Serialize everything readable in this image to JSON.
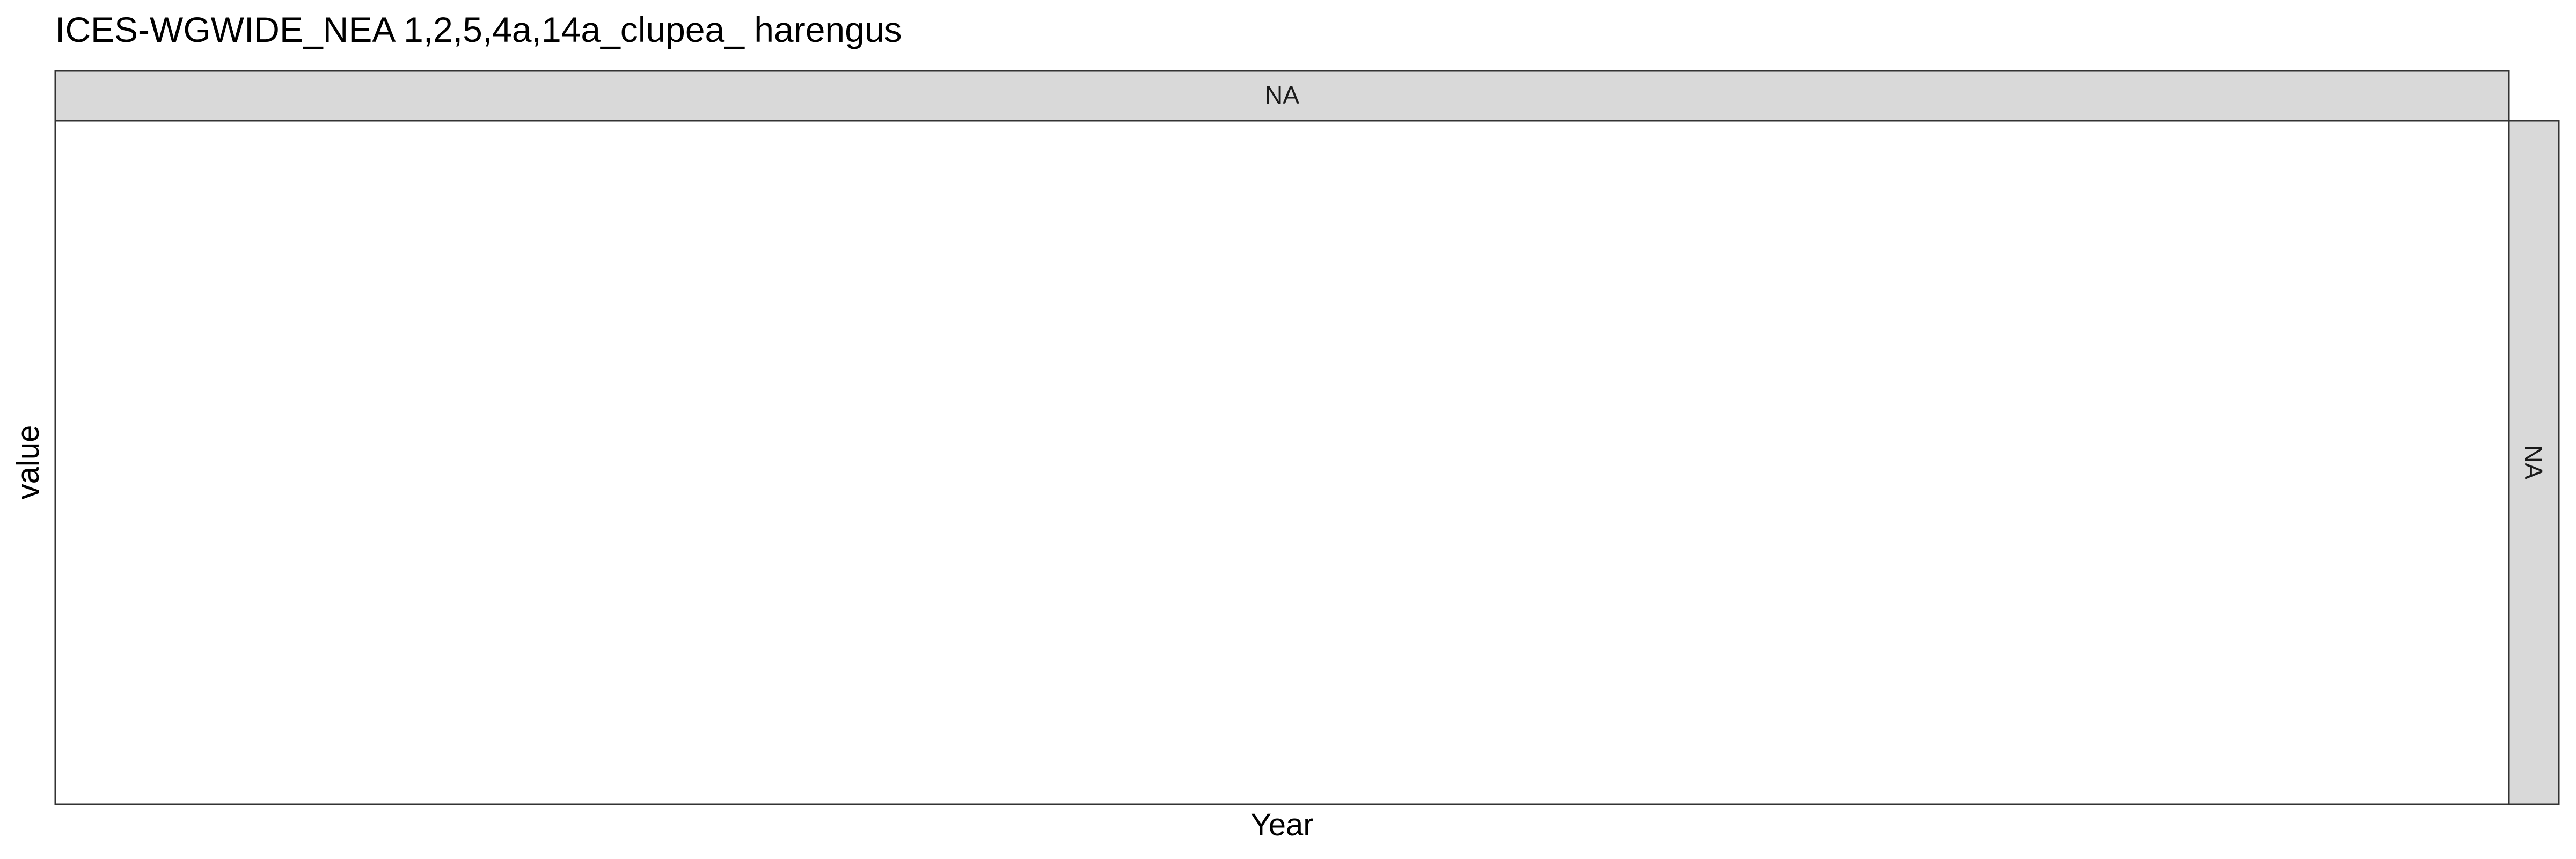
{
  "chart_data": {
    "type": "line",
    "title": "ICES-WGWIDE_NEA 1,2,5,4a,14a_clupea_ harengus",
    "xlabel": "Year",
    "ylabel": "value",
    "facet": {
      "column_strip": "NA",
      "row_strip": "NA"
    },
    "series": [],
    "grid": false,
    "legend": "none"
  },
  "colors": {
    "strip_fill": "#d9d9d9",
    "panel_border": "#333333",
    "text": "#000000",
    "strip_text": "#1a1a1a"
  }
}
